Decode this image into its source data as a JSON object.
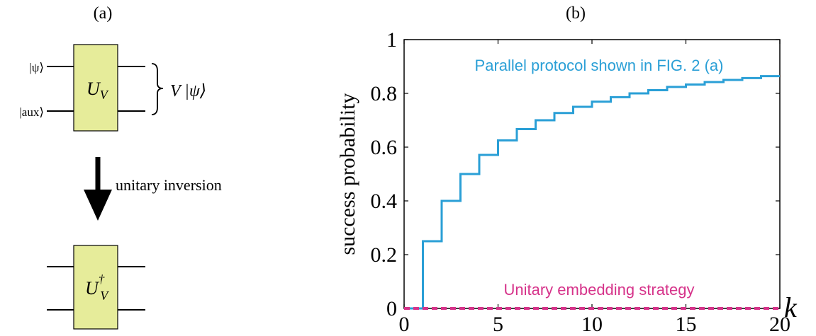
{
  "panel_a": {
    "label": "(a)",
    "input_top": "|ψ⟩",
    "input_bottom": "|aux⟩",
    "gate": {
      "symbol": "U",
      "subscript": "V"
    },
    "output": "V |ψ⟩",
    "arrow_label": "unitary inversion",
    "gate_inverse": {
      "symbol": "U",
      "superscript": "†",
      "subscript": "V"
    },
    "colors": {
      "gate_fill": "#e6ec9a"
    }
  },
  "panel_b": {
    "label": "(b)"
  },
  "chart_data": {
    "type": "line",
    "xlabel": "k",
    "ylabel": "success probability",
    "xlim": [
      0,
      20
    ],
    "ylim": [
      0,
      1
    ],
    "xticks": [
      "0",
      "5",
      "10",
      "15",
      "20"
    ],
    "yticks": [
      "0",
      "0.2",
      "0.4",
      "0.6",
      "0.8",
      "1"
    ],
    "xtick_values": [
      0,
      5,
      10,
      15,
      20
    ],
    "ytick_values": [
      0,
      0.2,
      0.4,
      0.6,
      0.8,
      1
    ],
    "series": [
      {
        "name": "Parallel protocol shown in FIG. 2 (a)",
        "color": "#2a9fd6",
        "style": "step",
        "x": [
          0,
          1,
          2,
          3,
          4,
          5,
          6,
          7,
          8,
          9,
          10,
          11,
          12,
          13,
          14,
          15,
          16,
          17,
          18,
          19,
          20
        ],
        "y": [
          0,
          0.25,
          0.4,
          0.5,
          0.571,
          0.625,
          0.667,
          0.7,
          0.727,
          0.75,
          0.769,
          0.786,
          0.8,
          0.812,
          0.824,
          0.833,
          0.842,
          0.85,
          0.857,
          0.864,
          0.864
        ]
      },
      {
        "name": "Unitary embedding strategy",
        "color": "#d6338a",
        "style": "dashed",
        "x": [
          0,
          20
        ],
        "y": [
          0,
          0
        ]
      }
    ]
  }
}
